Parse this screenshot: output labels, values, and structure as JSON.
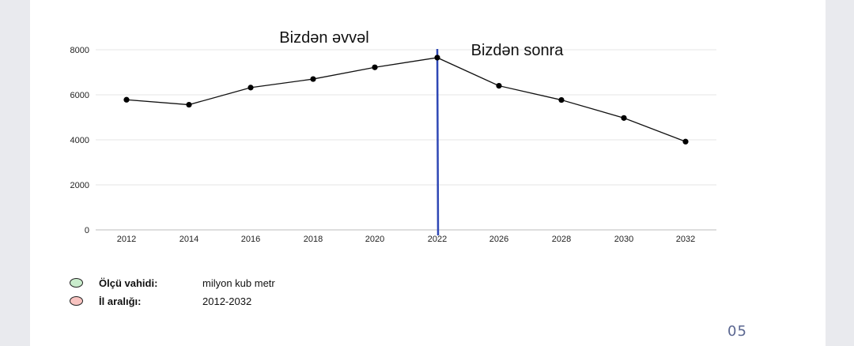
{
  "chart_data": {
    "type": "line",
    "x": [
      "2012",
      "2014",
      "2016",
      "2018",
      "2020",
      "2022",
      "2026",
      "2028",
      "2030",
      "2032"
    ],
    "values": [
      5780,
      5560,
      6320,
      6700,
      7220,
      7650,
      6400,
      5770,
      4970,
      3920
    ],
    "yticks": [
      "0",
      "2000",
      "4000",
      "6000",
      "8000"
    ],
    "ylim": [
      0,
      8000
    ],
    "grid": true,
    "divider_at": "2022",
    "annotations": {
      "before": "Bizdən əvvəl",
      "after": "Bizdən sonra"
    }
  },
  "legend": [
    {
      "label": "Ölçü vahidi:",
      "value": "milyon kub metr",
      "color": "#c9eccc"
    },
    {
      "label": "İl aralığı:",
      "value": "2012-2032",
      "color": "#f8c3c0"
    }
  ],
  "page_number": "05",
  "colors": {
    "line": "#111111",
    "divider": "#2e47b5",
    "grid": "#e6e6e6"
  }
}
